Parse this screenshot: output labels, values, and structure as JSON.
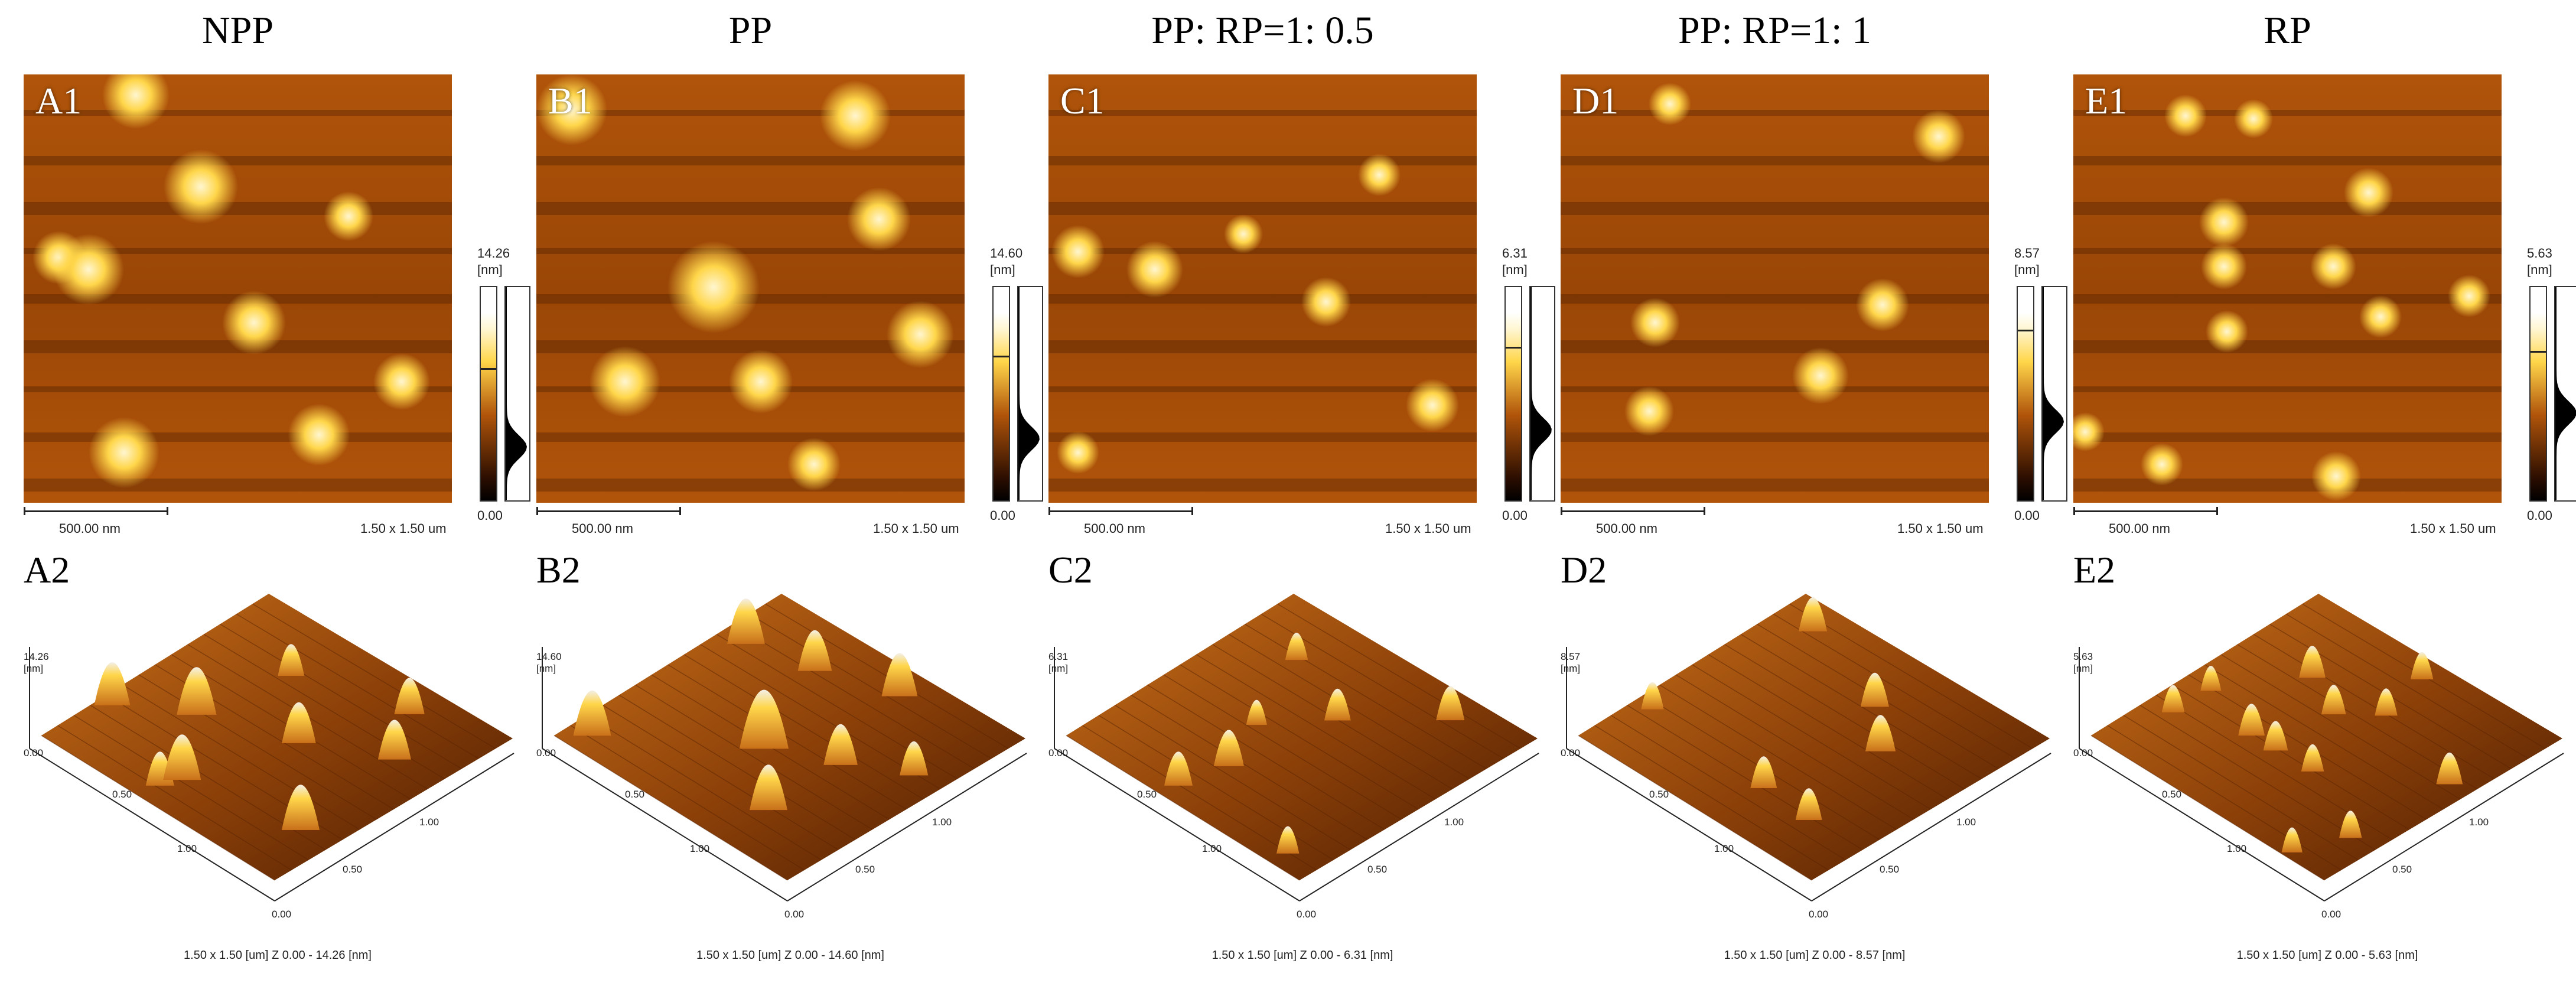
{
  "panels": [
    {
      "title": "NPP",
      "label_2d": "A1",
      "label_3d": "A2",
      "colorbar_max": "14.26",
      "colorbar_unit": "[nm]",
      "colorbar_min": "0.00",
      "scale_bar": "500.00 nm",
      "scan_size": "1.50 x 1.50 um",
      "axis_z_max": "14.26",
      "axis_z_unit": "[nm]",
      "axis_z_min": "0.00",
      "axis_ticks": [
        "0.50",
        "1.00",
        "0.00",
        "0.50",
        "1.00"
      ],
      "footer": "1.50 x 1.50 [um]    Z  0.00  -  14.26 [nm]",
      "colorbar_marker": 0.62
    },
    {
      "title": "PP",
      "label_2d": "B1",
      "label_3d": "B2",
      "colorbar_max": "14.60",
      "colorbar_unit": "[nm]",
      "colorbar_min": "0.00",
      "scale_bar": "500.00 nm",
      "scan_size": "1.50 x 1.50 um",
      "axis_z_max": "14.60",
      "axis_z_unit": "[nm]",
      "axis_z_min": "0.00",
      "axis_ticks": [
        "0.50",
        "1.00",
        "0.00",
        "0.50",
        "1.00"
      ],
      "footer": "1.50 x 1.50 [um]    Z  0.00  -  14.60 [nm]",
      "colorbar_marker": 0.68
    },
    {
      "title": "PP: RP=1: 0.5",
      "label_2d": "C1",
      "label_3d": "C2",
      "colorbar_max": "6.31",
      "colorbar_unit": "[nm]",
      "colorbar_min": "0.00",
      "scale_bar": "500.00 nm",
      "scan_size": "1.50 x 1.50 um",
      "axis_z_max": "6.31",
      "axis_z_unit": "[nm]",
      "axis_z_min": "0.00",
      "axis_ticks": [
        "0.50",
        "1.00",
        "0.00",
        "0.50",
        "1.00"
      ],
      "footer": "1.50 x 1.50 [um]    Z  0.00  -  6.31 [nm]",
      "colorbar_marker": 0.72
    },
    {
      "title": "PP: RP=1: 1",
      "label_2d": "D1",
      "label_3d": "D2",
      "colorbar_max": "8.57",
      "colorbar_unit": "[nm]",
      "colorbar_min": "0.00",
      "scale_bar": "500.00 nm",
      "scan_size": "1.50 x 1.50 um",
      "axis_z_max": "8.57",
      "axis_z_unit": "[nm]",
      "axis_z_min": "0.00",
      "axis_ticks": [
        "0.50",
        "1.00",
        "0.00",
        "0.50",
        "1.00"
      ],
      "footer": "1.50 x 1.50 [um]    Z  0.00  -  8.57 [nm]",
      "colorbar_marker": 0.8
    },
    {
      "title": "RP",
      "label_2d": "E1",
      "label_3d": "E2",
      "colorbar_max": "5.63",
      "colorbar_unit": "[nm]",
      "colorbar_min": "0.00",
      "scale_bar": "500.00 nm",
      "scan_size": "1.50 x 1.50 um",
      "axis_z_max": "5.63",
      "axis_z_unit": "[nm]",
      "axis_z_min": "0.00",
      "axis_ticks": [
        "0.50",
        "1.00",
        "0.00",
        "0.50",
        "1.00"
      ],
      "footer": "1.50 x 1.50 [um]    Z  0.00  -  5.63 [nm]",
      "colorbar_marker": 0.7
    }
  ],
  "colors": {
    "afm_dark": "#2a0d00",
    "afm_mid": "#b0540a",
    "afm_bright": "#ffd64a",
    "afm_peak": "#fff6d0"
  }
}
